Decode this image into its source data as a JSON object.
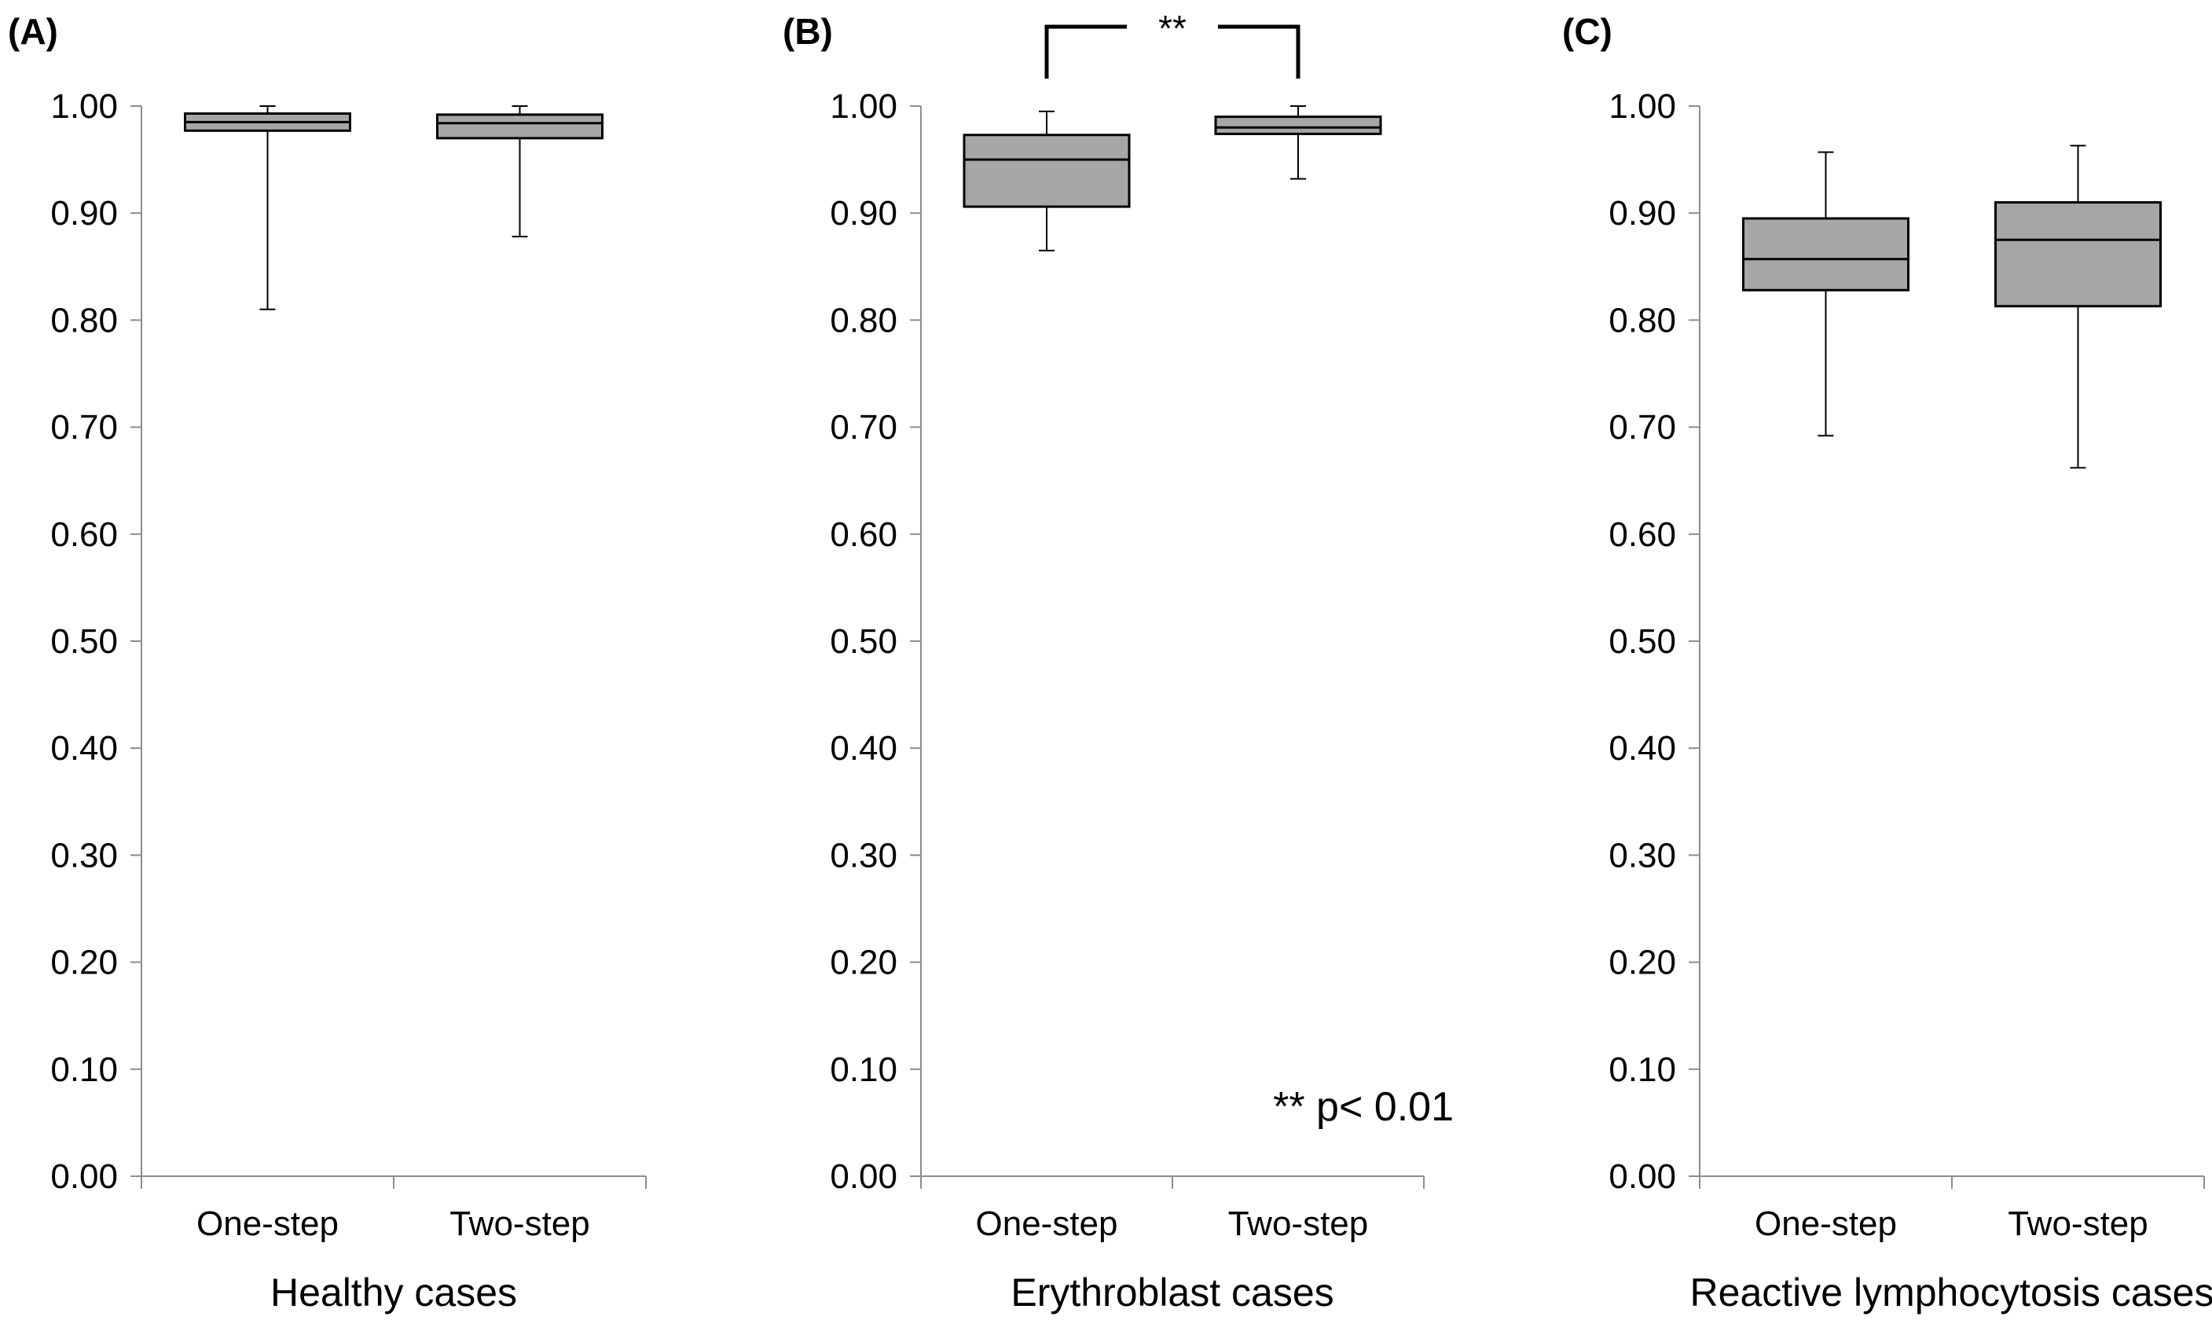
{
  "chart_data": [
    {
      "type": "box",
      "panel_label": "(A)",
      "xlabel": "Healthy cases",
      "ylabel": "",
      "ylim": [
        0,
        1
      ],
      "yticks": [
        "0.00",
        "0.10",
        "0.20",
        "0.30",
        "0.40",
        "0.50",
        "0.60",
        "0.70",
        "0.80",
        "0.90",
        "1.00"
      ],
      "categories": [
        "One-step",
        "Two-step"
      ],
      "grid": false,
      "box_color": "#a6a6a6",
      "boxes": [
        {
          "min": 0.81,
          "q1": 0.977,
          "median": 0.985,
          "q3": 0.993,
          "max": 1.0
        },
        {
          "min": 0.878,
          "q1": 0.97,
          "median": 0.984,
          "q3": 0.992,
          "max": 1.0
        }
      ]
    },
    {
      "type": "box",
      "panel_label": "(B)",
      "xlabel": "Erythroblast cases",
      "ylabel": "",
      "ylim": [
        0,
        1
      ],
      "yticks": [
        "0.00",
        "0.10",
        "0.20",
        "0.30",
        "0.40",
        "0.50",
        "0.60",
        "0.70",
        "0.80",
        "0.90",
        "1.00"
      ],
      "categories": [
        "One-step",
        "Two-step"
      ],
      "grid": false,
      "box_color": "#a6a6a6",
      "boxes": [
        {
          "min": 0.865,
          "q1": 0.906,
          "median": 0.95,
          "q3": 0.973,
          "max": 0.995
        },
        {
          "min": 0.932,
          "q1": 0.974,
          "median": 0.98,
          "q3": 0.99,
          "max": 1.0
        }
      ],
      "significance": {
        "label": "**",
        "between": [
          "One-step",
          "Two-step"
        ]
      },
      "annotation": "** p< 0.01"
    },
    {
      "type": "box",
      "panel_label": "(C)",
      "xlabel": "Reactive lymphocytosis cases",
      "ylabel": "",
      "ylim": [
        0,
        1
      ],
      "yticks": [
        "0.00",
        "0.10",
        "0.20",
        "0.30",
        "0.40",
        "0.50",
        "0.60",
        "0.70",
        "0.80",
        "0.90",
        "1.00"
      ],
      "categories": [
        "One-step",
        "Two-step"
      ],
      "grid": false,
      "box_color": "#a6a6a6",
      "boxes": [
        {
          "min": 0.692,
          "q1": 0.828,
          "median": 0.857,
          "q3": 0.895,
          "max": 0.957
        },
        {
          "min": 0.662,
          "q1": 0.813,
          "median": 0.875,
          "q3": 0.91,
          "max": 0.963
        }
      ]
    }
  ]
}
